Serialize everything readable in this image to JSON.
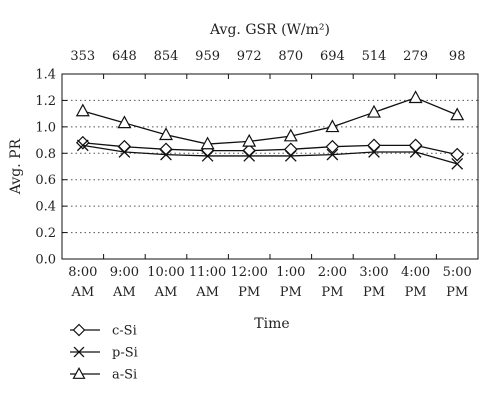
{
  "chart_data": {
    "type": "line",
    "title": "",
    "top_axis_label": "Avg. GSR (W/m²)",
    "top_axis_values": [
      "353",
      "648",
      "854",
      "959",
      "972",
      "870",
      "694",
      "514",
      "279",
      "98"
    ],
    "xlabel": "Time",
    "ylabel": "Avg. PR",
    "categories": [
      [
        "8:00",
        "AM"
      ],
      [
        "9:00",
        "AM"
      ],
      [
        "10:00",
        "AM"
      ],
      [
        "11:00",
        "AM"
      ],
      [
        "12:00",
        "PM"
      ],
      [
        "1:00",
        "PM"
      ],
      [
        "2:00",
        "PM"
      ],
      [
        "3:00",
        "PM"
      ],
      [
        "4:00",
        "PM"
      ],
      [
        "5:00",
        "PM"
      ]
    ],
    "ylim": [
      0.0,
      1.4
    ],
    "yticks": [
      "0.0",
      "0.2",
      "0.4",
      "0.6",
      "0.8",
      "1.0",
      "1.2",
      "1.4"
    ],
    "grid": "horizontal-dotted",
    "legend_position": "bottom-left",
    "series": [
      {
        "name": "c-Si",
        "marker": "diamond",
        "values": [
          0.88,
          0.85,
          0.83,
          0.82,
          0.82,
          0.83,
          0.85,
          0.86,
          0.86,
          0.79
        ]
      },
      {
        "name": "p-Si",
        "marker": "x",
        "values": [
          0.86,
          0.81,
          0.79,
          0.78,
          0.78,
          0.78,
          0.79,
          0.81,
          0.81,
          0.72
        ]
      },
      {
        "name": "a-Si",
        "marker": "triangle",
        "values": [
          1.12,
          1.03,
          0.94,
          0.87,
          0.89,
          0.93,
          1.0,
          1.11,
          1.22,
          1.09
        ]
      }
    ]
  },
  "colors": {
    "line": "#111111",
    "grid": "#555555"
  }
}
